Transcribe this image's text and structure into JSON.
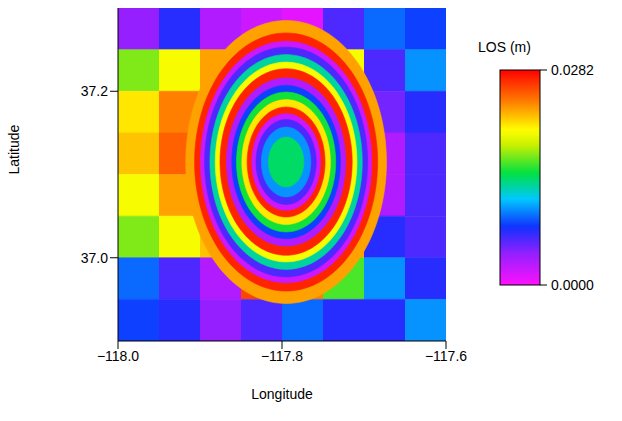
{
  "chart_data": {
    "type": "heatmap",
    "x_label": "Longitude",
    "y_label": "Latitude",
    "xlim": [
      -118.0,
      -117.6
    ],
    "xticks": [
      {
        "value": -118.0,
        "label": "−118.0"
      },
      {
        "value": -117.8,
        "label": "−117.8"
      },
      {
        "value": -117.6,
        "label": "−117.6"
      }
    ],
    "ylim": [
      36.9,
      37.3
    ],
    "yticks": [
      {
        "value": 37.0,
        "label": "37.0"
      },
      37.2
    ],
    "cells": {
      "lon_edges": [
        -118.0,
        -117.95,
        -117.9,
        -117.85,
        -117.8,
        -117.75,
        -117.7,
        -117.65,
        -117.6
      ],
      "lat_edges": [
        37.3,
        37.25,
        37.2,
        37.15,
        37.1,
        37.05,
        37.0,
        36.95,
        36.9
      ],
      "values": [
        [
          0.004,
          0.007,
          0.003,
          0.002,
          0.001,
          0.006,
          0.009,
          0.008
        ],
        [
          0.017,
          0.02,
          0.023,
          0.023,
          0.023,
          0.02,
          0.006,
          0.01
        ],
        [
          0.021,
          0.024,
          0.023,
          0.023,
          0.023,
          0.023,
          0.005,
          0.007
        ],
        [
          0.022,
          0.025,
          0.024,
          0.023,
          0.023,
          0.023,
          0.003,
          0.006
        ],
        [
          0.02,
          0.023,
          0.023,
          0.023,
          0.023,
          0.023,
          0.003,
          0.006
        ],
        [
          0.017,
          0.02,
          0.022,
          0.023,
          0.023,
          0.023,
          0.007,
          0.006
        ],
        [
          0.009,
          0.006,
          0.003,
          0.026,
          0.024,
          0.016,
          0.01,
          0.007
        ],
        [
          0.008,
          0.007,
          0.004,
          0.006,
          0.009,
          0.007,
          0.007,
          0.01
        ]
      ]
    },
    "ring_center": [
      -117.795,
      37.115
    ],
    "rings": [
      {
        "lon_radius": 0.1224,
        "lat_radius": 0.17,
        "value": 0.023
      },
      {
        "lon_radius": 0.1116,
        "lat_radius": 0.155,
        "value": 0.027
      },
      {
        "lon_radius": 0.1044,
        "lat_radius": 0.145,
        "value": 0.002
      },
      {
        "lon_radius": 0.0994,
        "lat_radius": 0.138,
        "value": 0.006
      },
      {
        "lon_radius": 0.0929,
        "lat_radius": 0.129,
        "value": 0.013
      },
      {
        "lon_radius": 0.0864,
        "lat_radius": 0.12,
        "value": 0.02
      },
      {
        "lon_radius": 0.0806,
        "lat_radius": 0.112,
        "value": 0.027
      },
      {
        "lon_radius": 0.0727,
        "lat_radius": 0.101,
        "value": 0.003
      },
      {
        "lon_radius": 0.0662,
        "lat_radius": 0.092,
        "value": 0.008
      },
      {
        "lon_radius": 0.0605,
        "lat_radius": 0.084,
        "value": 0.015
      },
      {
        "lon_radius": 0.054,
        "lat_radius": 0.075,
        "value": 0.021
      },
      {
        "lon_radius": 0.0475,
        "lat_radius": 0.066,
        "value": 0.027
      },
      {
        "lon_radius": 0.0418,
        "lat_radius": 0.058,
        "value": 0.002
      },
      {
        "lon_radius": 0.0367,
        "lat_radius": 0.051,
        "value": 0.006
      },
      {
        "lon_radius": 0.0302,
        "lat_radius": 0.042,
        "value": 0.01
      },
      {
        "lon_radius": 0.0216,
        "lat_radius": 0.03,
        "value": 0.014
      }
    ],
    "colorbar": {
      "label": "LOS (m)",
      "range": [
        0,
        0.0282
      ],
      "ticks": [
        {
          "value": 0,
          "label": "0.0000"
        },
        0.0282
      ]
    }
  }
}
